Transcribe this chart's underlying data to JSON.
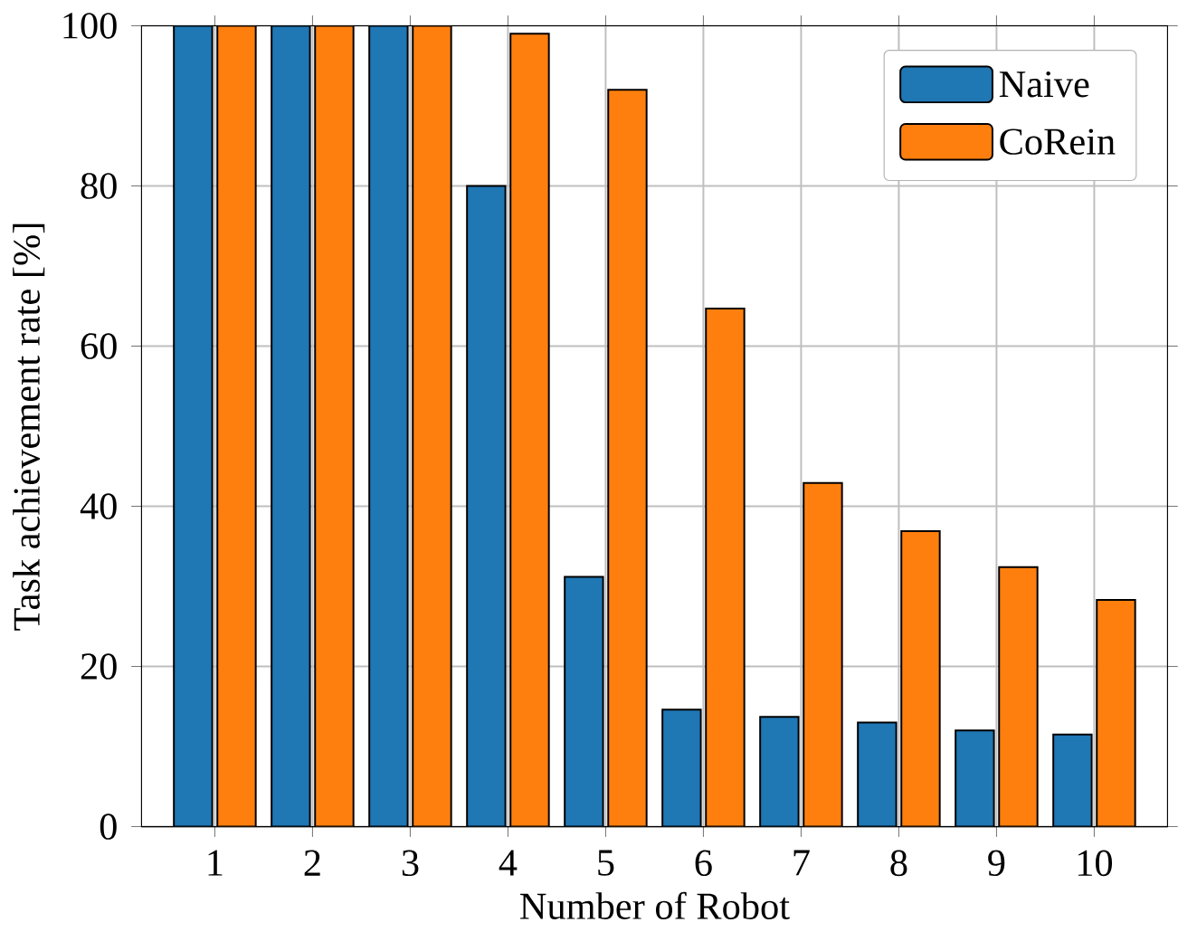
{
  "chart_data": {
    "type": "bar",
    "xlabel": "Number of Robot",
    "ylabel": "Task achievement rate [%]",
    "categories": [
      "1",
      "2",
      "3",
      "4",
      "5",
      "6",
      "7",
      "8",
      "9",
      "10"
    ],
    "series": [
      {
        "name": "Naive",
        "color": "#1f77b4",
        "values": [
          100,
          100,
          100,
          80,
          31.2,
          14.6,
          13.7,
          13,
          12,
          11.5
        ]
      },
      {
        "name": "CoRein",
        "color": "#ff7f0e",
        "values": [
          100,
          100,
          100,
          99,
          92,
          64.7,
          42.9,
          36.9,
          32.4,
          28.3
        ]
      }
    ],
    "ylim": [
      0,
      100
    ],
    "yticks": [
      0,
      20,
      40,
      60,
      80,
      100
    ],
    "grid": true,
    "legend": "top right"
  }
}
